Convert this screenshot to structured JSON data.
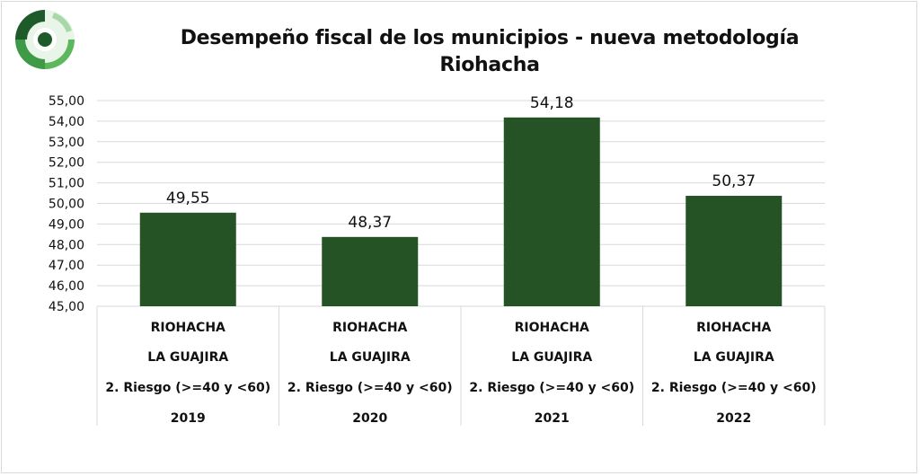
{
  "chart_data": {
    "type": "bar",
    "title": "Desempeño fiscal de los municipios - nueva metodología",
    "subtitle": "Riohacha",
    "xlabel": "",
    "ylabel": "",
    "ylim": [
      45,
      55
    ],
    "ytick_step": 1,
    "ytick_labels": [
      "45,00",
      "46,00",
      "47,00",
      "48,00",
      "49,00",
      "50,00",
      "51,00",
      "52,00",
      "53,00",
      "54,00",
      "55,00"
    ],
    "grid": true,
    "categories": [
      {
        "lines": [
          "RIOHACHA",
          "LA GUAJIRA",
          "2. Riesgo (>=40 y <60)",
          "2019"
        ]
      },
      {
        "lines": [
          "RIOHACHA",
          "LA GUAJIRA",
          "2. Riesgo (>=40 y <60)",
          "2020"
        ]
      },
      {
        "lines": [
          "RIOHACHA",
          "LA GUAJIRA",
          "2. Riesgo (>=40 y <60)",
          "2021"
        ]
      },
      {
        "lines": [
          "RIOHACHA",
          "LA GUAJIRA",
          "2. Riesgo (>=40 y <60)",
          "2022"
        ]
      }
    ],
    "values": [
      49.55,
      48.37,
      54.18,
      50.37
    ],
    "value_labels": [
      "49,55",
      "48,37",
      "54,18",
      "50,37"
    ],
    "bar_color": "#255325",
    "grid_color": "#d9d9d9"
  },
  "logo": {
    "icon": "concentric-ring-logo-icon",
    "colors": [
      "#1f5a2a",
      "#3f9a47",
      "#8fcf8f"
    ]
  }
}
